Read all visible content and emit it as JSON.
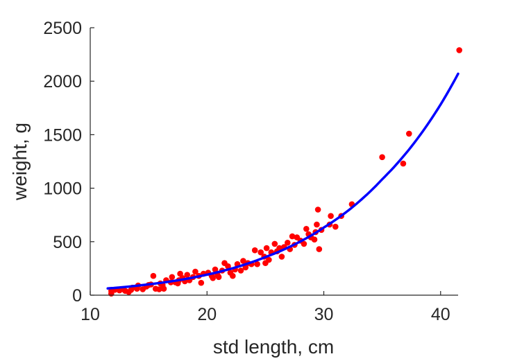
{
  "chart_data": {
    "type": "scatter",
    "xlabel": "std length, cm",
    "ylabel": "weight, g",
    "xlim": [
      10,
      41.5
    ],
    "ylim": [
      0,
      2500
    ],
    "xticks": [
      10,
      20,
      30,
      40
    ],
    "yticks": [
      0,
      500,
      1000,
      1500,
      2000,
      2500
    ],
    "grid": false,
    "colors": {
      "points": "#ff0000",
      "fit_line": "#0000ff",
      "axes": "#262626"
    },
    "series": [
      {
        "type": "scatter",
        "points": [
          [
            11.8,
            15
          ],
          [
            11.8,
            40
          ],
          [
            12.1,
            50
          ],
          [
            12.5,
            45
          ],
          [
            12.8,
            55
          ],
          [
            13.0,
            40
          ],
          [
            13.3,
            30
          ],
          [
            13.5,
            50
          ],
          [
            13.6,
            70
          ],
          [
            14.0,
            60
          ],
          [
            14.1,
            90
          ],
          [
            14.5,
            55
          ],
          [
            14.8,
            80
          ],
          [
            15.0,
            95
          ],
          [
            15.2,
            100
          ],
          [
            15.4,
            180
          ],
          [
            15.6,
            60
          ],
          [
            15.9,
            55
          ],
          [
            16.0,
            110
          ],
          [
            16.2,
            95
          ],
          [
            16.3,
            60
          ],
          [
            16.5,
            140
          ],
          [
            16.9,
            120
          ],
          [
            17.0,
            170
          ],
          [
            17.3,
            120
          ],
          [
            17.5,
            110
          ],
          [
            17.6,
            140
          ],
          [
            17.7,
            200
          ],
          [
            17.9,
            160
          ],
          [
            18.1,
            130
          ],
          [
            18.3,
            190
          ],
          [
            18.5,
            140
          ],
          [
            18.8,
            170
          ],
          [
            19.0,
            220
          ],
          [
            19.3,
            180
          ],
          [
            19.5,
            115
          ],
          [
            19.7,
            200
          ],
          [
            20.1,
            210
          ],
          [
            20.4,
            180
          ],
          [
            20.5,
            160
          ],
          [
            20.7,
            240
          ],
          [
            20.9,
            190
          ],
          [
            21.0,
            170
          ],
          [
            21.3,
            230
          ],
          [
            21.5,
            300
          ],
          [
            21.8,
            270
          ],
          [
            22.0,
            210
          ],
          [
            22.2,
            180
          ],
          [
            22.4,
            240
          ],
          [
            22.6,
            290
          ],
          [
            22.9,
            230
          ],
          [
            23.1,
            320
          ],
          [
            23.3,
            260
          ],
          [
            23.5,
            300
          ],
          [
            23.8,
            290
          ],
          [
            24.1,
            420
          ],
          [
            24.3,
            290
          ],
          [
            24.6,
            400
          ],
          [
            24.9,
            360
          ],
          [
            25.0,
            300
          ],
          [
            25.1,
            440
          ],
          [
            25.3,
            330
          ],
          [
            25.5,
            400
          ],
          [
            25.8,
            480
          ],
          [
            26.0,
            410
          ],
          [
            26.2,
            440
          ],
          [
            26.4,
            360
          ],
          [
            26.6,
            450
          ],
          [
            26.9,
            490
          ],
          [
            27.1,
            430
          ],
          [
            27.3,
            550
          ],
          [
            27.5,
            470
          ],
          [
            27.7,
            540
          ],
          [
            28.0,
            510
          ],
          [
            28.3,
            480
          ],
          [
            28.5,
            620
          ],
          [
            28.7,
            570
          ],
          [
            28.9,
            540
          ],
          [
            29.2,
            520
          ],
          [
            29.3,
            590
          ],
          [
            29.4,
            660
          ],
          [
            29.5,
            800
          ],
          [
            29.6,
            430
          ],
          [
            29.8,
            610
          ],
          [
            30.5,
            660
          ],
          [
            30.6,
            740
          ],
          [
            31.0,
            640
          ],
          [
            31.5,
            740
          ],
          [
            32.4,
            850
          ],
          [
            35.0,
            1290
          ],
          [
            36.8,
            1230
          ],
          [
            37.3,
            1510
          ],
          [
            41.6,
            2290
          ]
        ]
      },
      {
        "type": "line",
        "x": [
          11.5,
          15,
          20,
          25,
          30,
          35,
          41.5
        ],
        "y": [
          63,
          101,
          192,
          356,
          632,
          1083,
          2070
        ]
      }
    ]
  }
}
